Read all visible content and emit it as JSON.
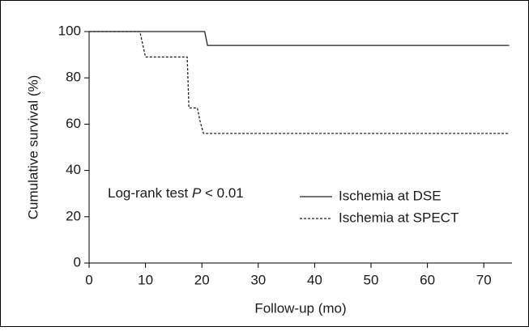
{
  "chart_data": {
    "type": "step-line",
    "x_label": "Follow-up (mo)",
    "y_label": "Cumulative survival (%)",
    "annotation": {
      "text": "Log-rank test ",
      "italic": "P",
      "rest": " < 0.01"
    },
    "xlim": [
      0,
      75
    ],
    "xticks": [
      0,
      10,
      20,
      30,
      40,
      50,
      60,
      70
    ],
    "ylim": [
      0,
      100
    ],
    "yticks": [
      0,
      20,
      40,
      60,
      80,
      100
    ],
    "series": [
      {
        "name": "Ischemia at DSE",
        "color": "#222222",
        "dash": "solid",
        "x": [
          0,
          20.5,
          21,
          74.5
        ],
        "values": [
          100,
          100,
          94,
          94
        ]
      },
      {
        "name": "Ischemia at SPECT",
        "color": "#222222",
        "dash": "dashed",
        "x": [
          0,
          9,
          10,
          17.4,
          17.7,
          19.2,
          19.7,
          20.3,
          74.5
        ],
        "values": [
          100,
          100,
          89,
          89,
          67,
          67,
          61,
          56,
          56
        ]
      }
    ]
  }
}
